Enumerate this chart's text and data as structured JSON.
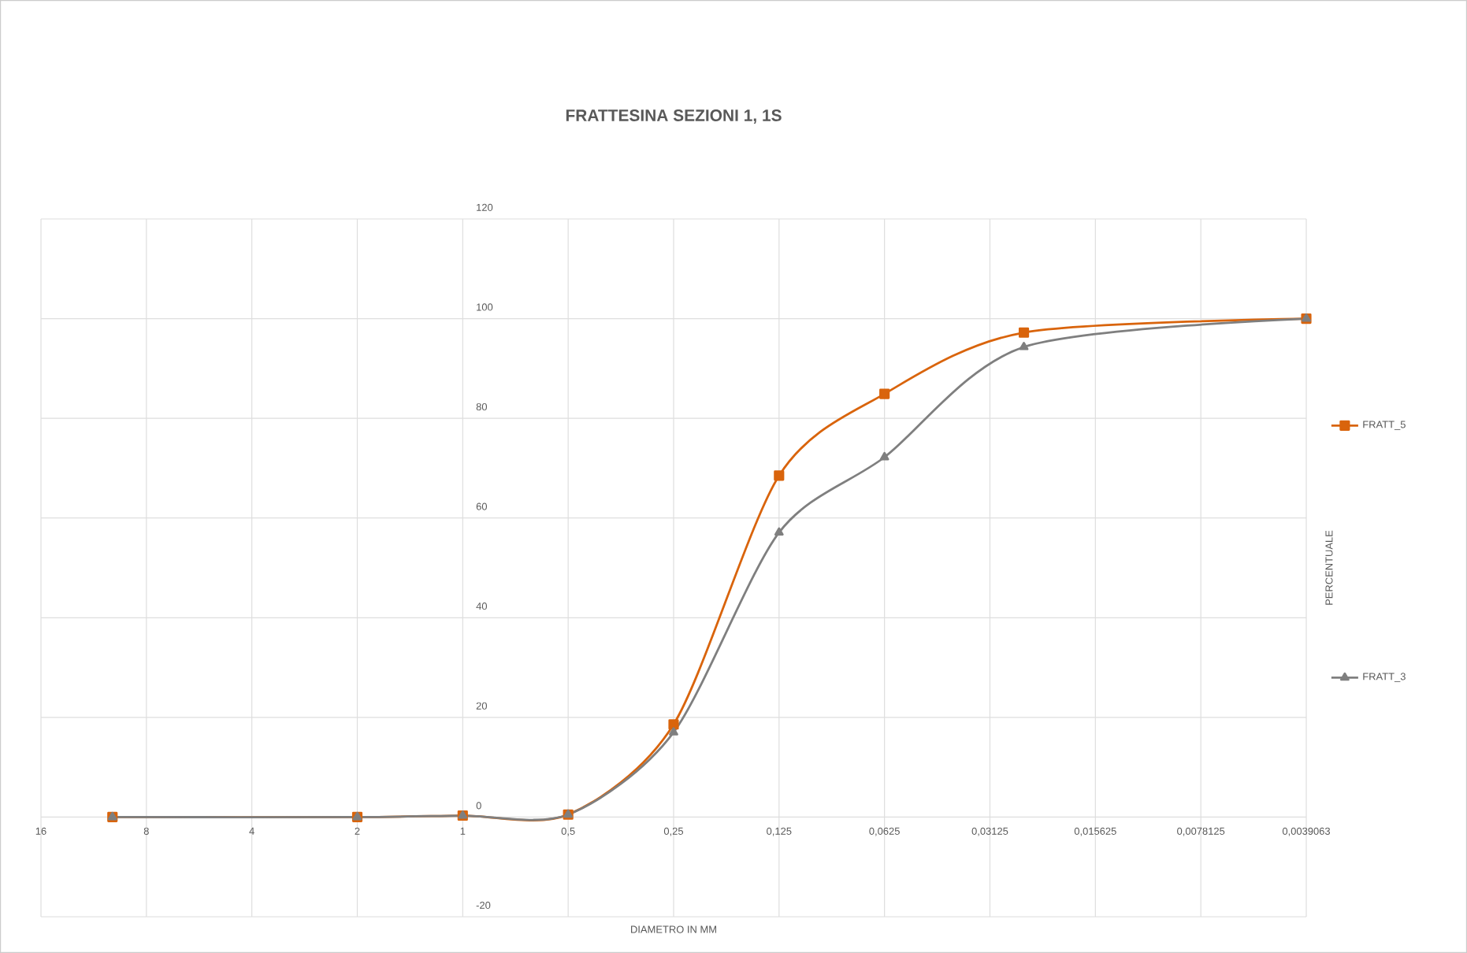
{
  "chart_data": {
    "type": "line",
    "title": "FRATTESINA SEZIONI 1, 1S",
    "xlabel": "DIAMETRO IN MM",
    "ylabel": "PERCENTUALE",
    "x": [
      10,
      2,
      1,
      0.5,
      0.25,
      0.125,
      0.0625,
      0.025,
      0.0039063
    ],
    "series": [
      {
        "name": "FRATT_5",
        "color": "#d9640c",
        "marker": "square",
        "values": [
          0,
          0,
          0.3,
          0.5,
          18.6,
          68.5,
          84.9,
          97.2,
          100
        ]
      },
      {
        "name": "FRATT_3",
        "color": "#7f7f7f",
        "marker": "triangle",
        "values": [
          0,
          0,
          0.3,
          0.5,
          17,
          57.1,
          72.2,
          94.3,
          100
        ]
      }
    ],
    "log": "x",
    "xlim": [
      16,
      0.0039063
    ],
    "xticks": [
      16,
      8,
      4,
      2,
      1,
      {
        "value": 0.5,
        "label": "0,5"
      },
      {
        "value": 0.25,
        "label": "0,25"
      },
      {
        "value": 0.125,
        "label": "0,125"
      },
      {
        "value": 0.0625,
        "label": "0,0625"
      },
      {
        "value": 0.03125,
        "label": "0,03125"
      },
      {
        "value": 0.015625,
        "label": "0,015625"
      },
      {
        "value": 0.0078125,
        "label": "0,0078125"
      },
      {
        "value": 0.0039063,
        "label": "0,0039063"
      }
    ],
    "ylim": [
      -20,
      120
    ],
    "yticks": [
      -20,
      0,
      20,
      40,
      60,
      80,
      100,
      120
    ],
    "grid": true,
    "legend": "right"
  }
}
